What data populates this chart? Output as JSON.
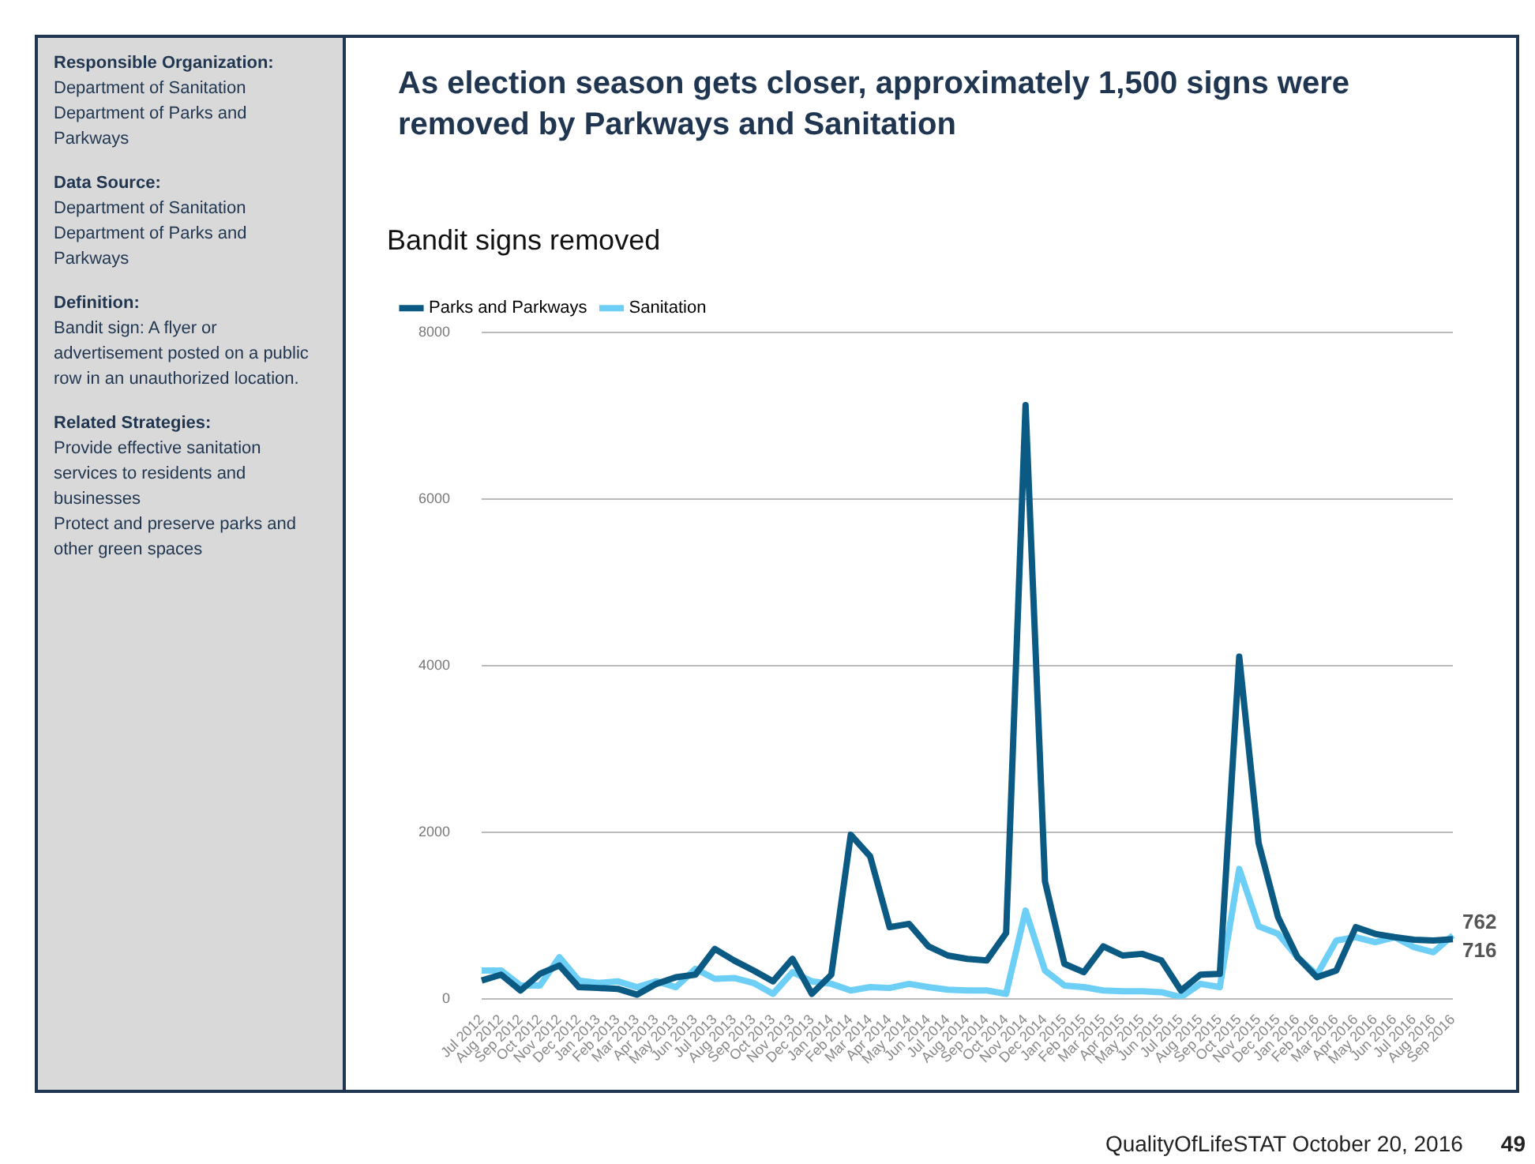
{
  "chart_data": {
    "type": "line",
    "title": "As election season gets closer, approximately 1,500 signs were removed by Parkways and Sanitation",
    "subtitle": "Bandit signs removed",
    "categories": [
      "Jul 2012",
      "Aug 2012",
      "Sep 2012",
      "Oct 2012",
      "Nov 2012",
      "Dec 2012",
      "Jan 2013",
      "Feb 2013",
      "Mar 2013",
      "Apr 2013",
      "May 2013",
      "Jun 2013",
      "Jul 2013",
      "Aug 2013",
      "Sep 2013",
      "Oct 2013",
      "Nov 2013",
      "Dec 2013",
      "Jan 2014",
      "Feb 2014",
      "Mar 2014",
      "Apr 2014",
      "May 2014",
      "Jun 2014",
      "Jul 2014",
      "Aug 2014",
      "Sep 2014",
      "Oct 2014",
      "Nov 2014",
      "Dec 2014",
      "Jan 2015",
      "Feb 2015",
      "Mar 2015",
      "Apr 2015",
      "May 2015",
      "Jun 2015",
      "Jul 2015",
      "Aug 2015",
      "Sep 2015",
      "Oct 2015",
      "Nov 2015",
      "Dec 2015",
      "Jan 2016",
      "Feb 2016",
      "Mar 2016",
      "Apr 2016",
      "May 2016",
      "Jun 2016",
      "Jul 2016",
      "Aug 2016",
      "Sep 2016"
    ],
    "series": [
      {
        "name": "Parks and Parkways",
        "color": "#0b5a84",
        "values": [
          220,
          290,
          100,
          300,
          400,
          140,
          130,
          120,
          50,
          180,
          260,
          290,
          600,
          460,
          340,
          210,
          480,
          60,
          290,
          1970,
          1710,
          860,
          900,
          630,
          520,
          480,
          460,
          790,
          7130,
          1410,
          420,
          320,
          630,
          520,
          540,
          460,
          100,
          290,
          300,
          4110,
          1870,
          980,
          500,
          260,
          340,
          860,
          780,
          740,
          710,
          700,
          716
        ],
        "value_labels": [
          null,
          null,
          null,
          null,
          null,
          null,
          null,
          null,
          null,
          null,
          null,
          null,
          null,
          null,
          null,
          null,
          null,
          null,
          null,
          null,
          null,
          null,
          null,
          null,
          null,
          null,
          null,
          null,
          null,
          null,
          null,
          null,
          null,
          null,
          null,
          null,
          null,
          null,
          null,
          null,
          null,
          null,
          null,
          null,
          null,
          null,
          null,
          null,
          null,
          null,
          "716"
        ]
      },
      {
        "name": "Sanitation",
        "color": "#6dcff6",
        "values": [
          340,
          340,
          160,
          160,
          500,
          220,
          190,
          210,
          140,
          210,
          140,
          360,
          240,
          250,
          190,
          60,
          320,
          210,
          180,
          100,
          140,
          130,
          180,
          140,
          110,
          100,
          100,
          60,
          1060,
          340,
          160,
          140,
          100,
          90,
          90,
          80,
          20,
          180,
          140,
          1560,
          870,
          780,
          500,
          290,
          700,
          740,
          680,
          740,
          620,
          560,
          762
        ],
        "value_labels": [
          null,
          null,
          null,
          null,
          null,
          null,
          null,
          null,
          null,
          null,
          null,
          null,
          null,
          null,
          null,
          null,
          null,
          null,
          null,
          null,
          null,
          null,
          null,
          null,
          null,
          null,
          null,
          null,
          null,
          null,
          null,
          null,
          null,
          null,
          null,
          null,
          null,
          null,
          null,
          null,
          null,
          null,
          null,
          null,
          null,
          null,
          null,
          null,
          null,
          null,
          "762"
        ]
      }
    ],
    "ylim": [
      0,
      8000
    ],
    "yticks": [
      0,
      2000,
      4000,
      6000,
      8000
    ],
    "grid": "y",
    "legend": "top left",
    "marker": "none",
    "line_style": "solid",
    "annotations": [
      "Responsible Organization:",
      "Department of Sanitation",
      "Department of Parks and Parkways",
      "Data Source:",
      "Department of Sanitation",
      "Department of Parks and Parkways",
      "Definition:",
      "Bandit sign: A flyer or advertisement posted on a public row in an unauthorized location.",
      "Related Strategies:",
      "Provide effective sanitation services to residents and businesses",
      "Protect and preserve parks and other green spaces",
      "QualityOfLifeSTAT October 20, 2016",
      "49"
    ]
  }
}
